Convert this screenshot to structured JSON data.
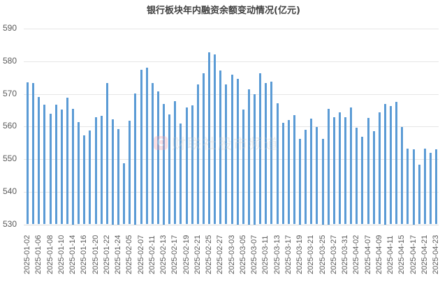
{
  "chart_data": {
    "type": "bar",
    "title": "银行板块年内融资余额变动情况(亿元)",
    "xlabel": "",
    "ylabel": "",
    "ylim": [
      530,
      590
    ],
    "yticks": [
      530,
      540,
      550,
      560,
      570,
      580,
      590
    ],
    "grid": true,
    "legend": "none",
    "bar_color": "#5b9bd5",
    "categories": [
      "2025-01-02",
      "2025-01-03",
      "2025-01-06",
      "2025-01-07",
      "2025-01-08",
      "2025-01-09",
      "2025-01-10",
      "2025-01-13",
      "2025-01-14",
      "2025-01-15",
      "2025-01-16",
      "2025-01-17",
      "2025-01-20",
      "2025-01-21",
      "2025-01-22",
      "2025-01-23",
      "2025-01-24",
      "2025-01-27",
      "2025-02-05",
      "2025-02-06",
      "2025-02-07",
      "2025-02-10",
      "2025-02-11",
      "2025-02-12",
      "2025-02-13",
      "2025-02-14",
      "2025-02-17",
      "2025-02-18",
      "2025-02-19",
      "2025-02-20",
      "2025-02-21",
      "2025-02-24",
      "2025-02-25",
      "2025-02-26",
      "2025-02-27",
      "2025-02-28",
      "2025-03-03",
      "2025-03-04",
      "2025-03-05",
      "2025-03-06",
      "2025-03-07",
      "2025-03-10",
      "2025-03-11",
      "2025-03-12",
      "2025-03-13",
      "2025-03-14",
      "2025-03-17",
      "2025-03-18",
      "2025-03-19",
      "2025-03-20",
      "2025-03-21",
      "2025-03-24",
      "2025-03-25",
      "2025-03-26",
      "2025-03-27",
      "2025-03-28",
      "2025-03-31",
      "2025-04-01",
      "2025-04-02",
      "2025-04-03",
      "2025-04-07",
      "2025-04-08",
      "2025-04-09",
      "2025-04-10",
      "2025-04-11",
      "2025-04-14",
      "2025-04-15",
      "2025-04-16",
      "2025-04-17",
      "2025-04-18",
      "2025-04-21",
      "2025-04-22",
      "2025-04-23"
    ],
    "values": [
      573.5,
      573.4,
      569.1,
      566.6,
      564.0,
      566.6,
      565.1,
      568.9,
      565.5,
      561.3,
      557.2,
      558.7,
      562.9,
      563.2,
      573.4,
      562.3,
      559.3,
      548.8,
      561.7,
      570.1,
      577.4,
      578.0,
      573.4,
      570.8,
      567.0,
      563.6,
      567.7,
      561.0,
      565.9,
      566.4,
      572.9,
      576.4,
      582.7,
      582.0,
      577.2,
      572.8,
      575.9,
      574.7,
      565.2,
      571.5,
      569.9,
      576.4,
      573.4,
      573.8,
      567.2,
      561.1,
      561.9,
      563.4,
      556.3,
      558.9,
      562.5,
      559.8,
      556.3,
      565.4,
      562.9,
      564.3,
      562.8,
      565.9,
      559.6,
      556.8,
      562.6,
      558.5,
      564.4,
      566.9,
      566.2,
      567.5,
      559.8,
      553.3,
      553.1,
      548.2,
      553.3,
      552.0,
      552.9
    ],
    "xtick_labels_shown": [
      "2025-01-02",
      "2025-01-06",
      "2025-01-08",
      "2025-01-10",
      "2025-01-14",
      "2025-01-16",
      "2025-01-20",
      "2025-01-22",
      "2025-01-24",
      "2025-02-05",
      "2025-02-07",
      "2025-02-11",
      "2025-02-13",
      "2025-02-17",
      "2025-02-19",
      "2025-02-21",
      "2025-02-25",
      "2025-02-27",
      "2025-03-03",
      "2025-03-05",
      "2025-03-07",
      "2025-03-11",
      "2025-03-13",
      "2025-03-17",
      "2025-03-19",
      "2025-03-21",
      "2025-03-25",
      "2025-03-27",
      "2025-03-31",
      "2025-04-02",
      "2025-04-07",
      "2025-04-09",
      "2025-04-11",
      "2025-04-15",
      "2025-04-17",
      "2025-04-21",
      "2025-04-23"
    ]
  },
  "watermark": {
    "logo": "C",
    "text": "财联社股市频道"
  }
}
